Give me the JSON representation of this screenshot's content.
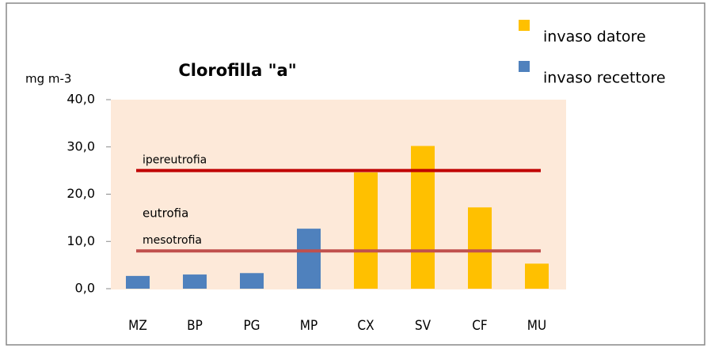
{
  "chart_data": {
    "type": "bar",
    "title": "Clorofilla \"a\"",
    "y_label": "mg m-3",
    "categories": [
      "MZ",
      "BP",
      "PG",
      "MP",
      "CX",
      "SV",
      "CF",
      "MU"
    ],
    "series": [
      {
        "name": "invaso datore",
        "color": "#ffc000",
        "values": [
          null,
          null,
          null,
          null,
          24.6,
          30.2,
          17.2,
          5.3
        ]
      },
      {
        "name": "invaso recettore",
        "color": "#4f81bd",
        "values": [
          2.7,
          3.0,
          3.3,
          12.7,
          null,
          null,
          null,
          null
        ]
      }
    ],
    "thresholds": [
      {
        "label": "ipereutrofia",
        "value": 25,
        "color": "#c00000"
      },
      {
        "label": "mesotrofia",
        "value": 8,
        "color": "#c0504d"
      }
    ],
    "annotations": [
      "eutrofia"
    ],
    "ylim": [
      0,
      40
    ],
    "yticks": [
      {
        "value": 0,
        "label": "0,0"
      },
      {
        "value": 10,
        "label": "10,0"
      },
      {
        "value": 20,
        "label": "20,0"
      },
      {
        "value": 30,
        "label": "30,0"
      },
      {
        "value": 40,
        "label": "40,0"
      }
    ],
    "legend": "top-right"
  }
}
